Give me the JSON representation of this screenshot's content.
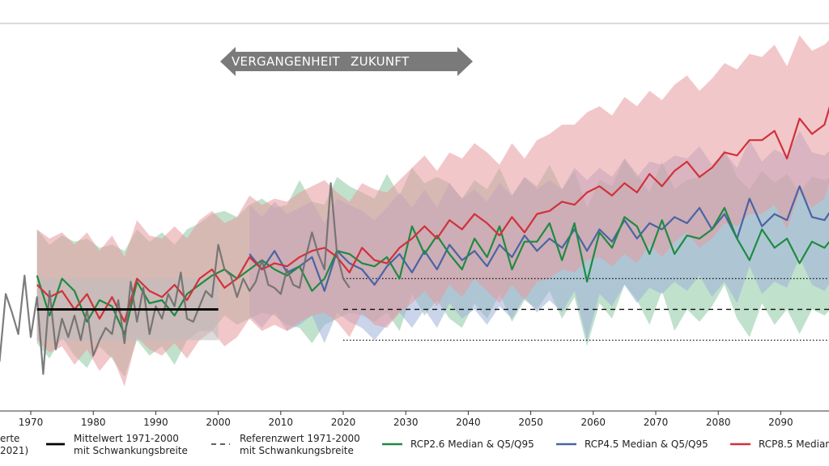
{
  "colors": {
    "observed": "#6e6e6e",
    "rcp26": "#1f8a42",
    "rcp45": "#4a64a4",
    "rcp85": "#d1313a",
    "rcp26_band": "#8cc9a3",
    "rcp45_band": "#9fb1d8",
    "rcp85_band": "#e8999e",
    "mean_band": "#bdbdbd",
    "arrow": "#7a7a7a"
  },
  "arrow_banner": {
    "left": "VERGANGENHEIT",
    "right": "ZUKUNFT"
  },
  "legend": [
    {
      "key": "observed",
      "label_line1": "erte",
      "label_line2": "2021)"
    },
    {
      "key": "mean",
      "label_line1": "Mittelwert 1971-2000",
      "label_line2": "mit Schwankungsbreite"
    },
    {
      "key": "reference",
      "label_line1": "Referenzwert 1971-2000",
      "label_line2": "mit Schwankungsbreite"
    },
    {
      "key": "rcp26",
      "label_line1": "RCP2.6 Median & Q5/Q95",
      "label_line2": ""
    },
    {
      "key": "rcp45",
      "label_line1": "RCP4.5 Median & Q5/Q95",
      "label_line2": ""
    },
    {
      "key": "rcp85",
      "label_line1": "RCP8.5 Median",
      "label_line2": ""
    }
  ],
  "chart_data": {
    "type": "line",
    "title": "",
    "xlabel": "",
    "ylabel": "",
    "xlim": [
      1965.0,
      2099.0
    ],
    "ylim": [
      -3.3,
      9.0
    ],
    "grid": false,
    "legend_position": "bottom",
    "x_ticks": [
      1970,
      1980,
      1990,
      2000,
      2010,
      2020,
      2030,
      2040,
      2050,
      2060,
      2070,
      2080,
      2090
    ],
    "tick_label_texts": [
      "1970",
      "1980",
      "1990",
      "2000",
      "2010",
      "2020",
      "2030",
      "2040",
      "2050",
      "2060",
      "2070",
      "2080",
      "2090"
    ],
    "mean_1971_2000": {
      "x": [
        1971,
        2000
      ],
      "value": 0.0,
      "band": [
        -1.0,
        1.0
      ]
    },
    "reference_1971_2000": {
      "x": [
        2020,
        2099
      ],
      "value": 0.0,
      "upper_dotted": 1.0,
      "lower_dotted": -1.0
    },
    "observed": {
      "name": "erte",
      "x": [
        1965,
        1966,
        1967,
        1968,
        1969,
        1970,
        1971,
        1972,
        1973,
        1974,
        1975,
        1976,
        1977,
        1978,
        1979,
        1980,
        1981,
        1982,
        1983,
        1984,
        1985,
        1986,
        1987,
        1988,
        1989,
        1990,
        1991,
        1992,
        1993,
        1994,
        1995,
        1996,
        1997,
        1998,
        1999,
        2000,
        2001,
        2002,
        2003,
        2004,
        2005,
        2006,
        2007,
        2008,
        2009,
        2010,
        2011,
        2012,
        2013,
        2014,
        2015,
        2016,
        2017,
        2018,
        2019,
        2020,
        2021
      ],
      "values": [
        -1.7,
        0.5,
        -0.1,
        -0.8,
        1.1,
        -0.9,
        0.4,
        -2.1,
        0.6,
        -1.3,
        -0.3,
        -0.9,
        -0.2,
        -1.0,
        0.0,
        -1.5,
        -1.0,
        -0.6,
        -0.8,
        0.3,
        -1.1,
        0.9,
        -0.4,
        0.7,
        -0.8,
        0.1,
        -0.3,
        0.5,
        0.1,
        1.2,
        -0.3,
        -0.4,
        0.1,
        0.6,
        0.4,
        2.1,
        1.3,
        1.1,
        0.4,
        1.0,
        0.6,
        0.9,
        1.6,
        0.8,
        0.7,
        0.5,
        1.3,
        0.8,
        0.7,
        1.7,
        2.5,
        1.8,
        1.3,
        4.1,
        1.8,
        1.0,
        0.7
      ]
    },
    "series": [
      {
        "name": "RCP2.6 Median & Q5/Q95",
        "x": [
          1971,
          1973,
          1975,
          1977,
          1979,
          1981,
          1983,
          1985,
          1987,
          1989,
          1991,
          1993,
          1995,
          1997,
          1999,
          2001,
          2003,
          2005,
          2007,
          2009,
          2011,
          2013,
          2015,
          2017,
          2019,
          2021,
          2023,
          2025,
          2027,
          2029,
          2031,
          2033,
          2035,
          2037,
          2039,
          2041,
          2043,
          2045,
          2047,
          2049,
          2051,
          2053,
          2055,
          2057,
          2059,
          2061,
          2063,
          2065,
          2067,
          2069,
          2071,
          2073,
          2075,
          2077,
          2079,
          2081,
          2083,
          2085,
          2087,
          2089,
          2091,
          2093,
          2095,
          2097,
          2099
        ],
        "values": [
          1.1,
          -0.2,
          1.0,
          0.6,
          -0.4,
          0.3,
          0.1,
          -0.8,
          0.9,
          0.2,
          0.3,
          -0.2,
          0.5,
          0.8,
          1.1,
          1.3,
          1.0,
          1.3,
          1.6,
          1.3,
          1.1,
          1.4,
          0.6,
          1.0,
          1.9,
          1.8,
          1.5,
          1.4,
          1.7,
          1.0,
          2.7,
          1.8,
          2.4,
          1.8,
          1.3,
          2.3,
          1.7,
          2.7,
          1.3,
          2.2,
          2.2,
          2.8,
          1.6,
          2.8,
          0.9,
          2.5,
          2.0,
          3.0,
          2.7,
          1.8,
          2.9,
          1.8,
          2.4,
          2.3,
          2.6,
          3.3,
          2.3,
          1.6,
          2.6,
          2.0,
          2.3,
          1.5,
          2.2,
          2.0,
          2.5
        ],
        "upper": [
          2.6,
          2.1,
          2.4,
          2.2,
          2.3,
          2.0,
          2.1,
          1.9,
          2.6,
          2.2,
          2.5,
          2.1,
          2.6,
          2.8,
          3.1,
          3.2,
          3.0,
          3.4,
          3.6,
          3.3,
          3.4,
          4.2,
          3.5,
          3.4,
          4.3,
          4.0,
          3.8,
          3.6,
          4.4,
          3.7,
          4.6,
          4.1,
          4.3,
          4.1,
          3.6,
          4.2,
          3.9,
          4.6,
          3.7,
          4.3,
          4.0,
          4.7,
          3.9,
          4.5,
          3.3,
          4.2,
          4.0,
          4.9,
          4.4,
          3.8,
          4.8,
          3.9,
          4.2,
          4.3,
          4.5,
          5.2,
          4.3,
          3.9,
          4.5,
          4.1,
          4.4,
          3.8,
          4.3,
          4.2,
          4.4
        ],
        "lower": [
          -1.1,
          -1.6,
          -0.9,
          -1.5,
          -1.9,
          -1.2,
          -1.6,
          -2.2,
          -1.0,
          -1.5,
          -1.2,
          -1.8,
          -1.0,
          -0.7,
          -0.7,
          -0.2,
          -0.5,
          -0.3,
          -0.1,
          -0.2,
          -0.5,
          -0.6,
          -1.1,
          -0.5,
          -0.3,
          -0.1,
          -0.2,
          -0.4,
          -0.1,
          -0.7,
          0.5,
          -0.2,
          0.3,
          -0.3,
          -0.6,
          0.2,
          -0.3,
          0.5,
          -0.4,
          0.3,
          0.0,
          0.6,
          -0.3,
          0.4,
          -1.2,
          0.2,
          -0.3,
          0.8,
          0.3,
          -0.5,
          0.6,
          -0.7,
          0.0,
          -0.4,
          0.1,
          0.8,
          -0.3,
          -0.9,
          0.2,
          -0.5,
          0.0,
          -0.8,
          0.0,
          -0.2,
          0.2
        ]
      },
      {
        "name": "RCP4.5 Median & Q5/Q95",
        "x": [
          2005,
          2007,
          2009,
          2011,
          2013,
          2015,
          2017,
          2019,
          2021,
          2023,
          2025,
          2027,
          2029,
          2031,
          2033,
          2035,
          2037,
          2039,
          2041,
          2043,
          2045,
          2047,
          2049,
          2051,
          2053,
          2055,
          2057,
          2059,
          2061,
          2063,
          2065,
          2067,
          2069,
          2071,
          2073,
          2075,
          2077,
          2079,
          2081,
          2083,
          2085,
          2087,
          2089,
          2091,
          2093,
          2095,
          2097,
          2099
        ],
        "values": [
          1.8,
          1.3,
          1.9,
          1.2,
          1.4,
          1.7,
          0.6,
          1.9,
          1.5,
          1.3,
          0.8,
          1.4,
          1.8,
          1.2,
          1.9,
          1.3,
          2.1,
          1.6,
          1.9,
          1.4,
          2.1,
          1.7,
          2.4,
          1.9,
          2.3,
          2.0,
          2.6,
          1.9,
          2.6,
          2.2,
          2.9,
          2.3,
          2.8,
          2.6,
          3.0,
          2.8,
          3.3,
          2.6,
          3.1,
          2.3,
          3.6,
          2.7,
          3.1,
          2.9,
          4.0,
          3.0,
          2.9,
          3.5
        ],
        "upper": [
          3.4,
          3.0,
          3.5,
          3.1,
          3.3,
          3.5,
          2.8,
          3.6,
          3.4,
          3.2,
          2.9,
          3.3,
          3.8,
          3.3,
          3.9,
          3.3,
          4.1,
          3.6,
          3.9,
          3.5,
          4.1,
          3.7,
          4.3,
          3.9,
          4.2,
          3.9,
          4.6,
          4.2,
          4.6,
          4.3,
          4.9,
          4.3,
          4.8,
          4.7,
          5.0,
          4.9,
          5.3,
          4.7,
          5.1,
          4.6,
          5.5,
          4.8,
          5.2,
          5.0,
          5.8,
          5.1,
          5.0,
          5.4
        ],
        "lower": [
          -0.2,
          -0.6,
          -0.1,
          -0.7,
          -0.5,
          -0.2,
          -1.1,
          -0.1,
          -0.4,
          -0.6,
          -1.0,
          -0.5,
          -0.1,
          -0.6,
          0.0,
          -0.6,
          0.2,
          -0.3,
          0.0,
          -0.5,
          0.1,
          -0.3,
          0.4,
          -0.1,
          0.3,
          -0.1,
          0.6,
          -1.0,
          0.5,
          0.1,
          0.8,
          0.2,
          0.7,
          0.5,
          0.9,
          0.6,
          1.1,
          0.4,
          0.9,
          0.2,
          1.4,
          0.5,
          0.9,
          0.7,
          1.7,
          0.8,
          0.6,
          1.2
        ]
      },
      {
        "name": "RCP8.5 Median",
        "x": [
          1971,
          1973,
          1975,
          1977,
          1979,
          1981,
          1983,
          1985,
          1987,
          1989,
          1991,
          1993,
          1995,
          1997,
          1999,
          2001,
          2003,
          2005,
          2007,
          2009,
          2011,
          2013,
          2015,
          2017,
          2019,
          2021,
          2023,
          2025,
          2027,
          2029,
          2031,
          2033,
          2035,
          2037,
          2039,
          2041,
          2043,
          2045,
          2047,
          2049,
          2051,
          2053,
          2055,
          2057,
          2059,
          2061,
          2063,
          2065,
          2067,
          2069,
          2071,
          2073,
          2075,
          2077,
          2079,
          2081,
          2083,
          2085,
          2087,
          2089,
          2091,
          2093,
          2095,
          2097,
          2099
        ],
        "values": [
          0.8,
          0.4,
          0.6,
          0.0,
          0.5,
          -0.3,
          0.4,
          -0.4,
          1.0,
          0.6,
          0.4,
          0.8,
          0.3,
          1.0,
          1.3,
          0.7,
          1.0,
          1.7,
          1.3,
          1.5,
          1.4,
          1.7,
          1.9,
          2.0,
          1.7,
          1.2,
          2.0,
          1.6,
          1.5,
          2.0,
          2.3,
          2.7,
          2.3,
          2.9,
          2.6,
          3.1,
          2.8,
          2.4,
          3.0,
          2.5,
          3.1,
          3.2,
          3.5,
          3.4,
          3.8,
          4.0,
          3.7,
          4.1,
          3.8,
          4.4,
          4.0,
          4.5,
          4.8,
          4.3,
          4.6,
          5.1,
          5.0,
          5.5,
          5.5,
          5.8,
          4.9,
          6.2,
          5.7,
          6.0,
          7.4
        ],
        "upper": [
          2.6,
          2.3,
          2.5,
          2.1,
          2.5,
          1.9,
          2.4,
          1.7,
          2.9,
          2.4,
          2.3,
          2.7,
          2.3,
          2.9,
          3.2,
          2.8,
          3.0,
          3.7,
          3.4,
          3.6,
          3.5,
          3.8,
          4.0,
          4.2,
          3.8,
          3.5,
          4.1,
          3.9,
          3.8,
          4.2,
          4.6,
          5.0,
          4.5,
          5.1,
          4.9,
          5.4,
          5.1,
          4.7,
          5.4,
          4.9,
          5.5,
          5.7,
          6.0,
          6.0,
          6.4,
          6.6,
          6.3,
          6.9,
          6.6,
          7.1,
          6.8,
          7.3,
          7.6,
          7.1,
          7.5,
          8.0,
          7.8,
          8.3,
          8.2,
          8.6,
          7.9,
          8.9,
          8.4,
          8.6,
          9.0
        ],
        "lower": [
          -1.0,
          -1.4,
          -1.2,
          -1.8,
          -1.3,
          -2.0,
          -1.5,
          -2.5,
          -0.9,
          -1.3,
          -1.5,
          -1.1,
          -1.6,
          -1.0,
          -0.7,
          -1.2,
          -0.9,
          -0.3,
          -0.7,
          -0.5,
          -0.7,
          -0.4,
          -0.2,
          -0.1,
          -0.4,
          -0.9,
          -0.1,
          -0.5,
          -0.6,
          -0.1,
          0.2,
          0.6,
          0.1,
          0.8,
          0.4,
          1.0,
          0.6,
          0.2,
          0.8,
          0.3,
          0.9,
          1.0,
          1.3,
          1.2,
          1.6,
          1.7,
          1.4,
          1.8,
          1.5,
          2.1,
          1.7,
          2.2,
          2.5,
          2.0,
          2.3,
          2.8,
          2.7,
          3.1,
          3.1,
          3.4,
          2.6,
          3.8,
          3.3,
          3.6,
          5.0
        ]
      }
    ]
  }
}
